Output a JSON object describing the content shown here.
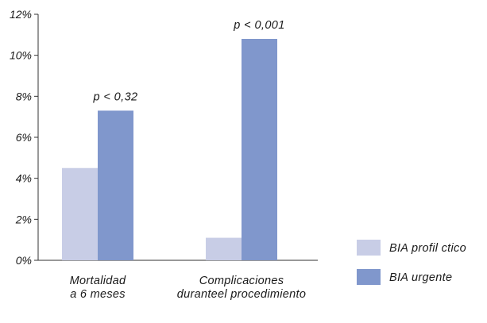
{
  "chart_data": {
    "type": "bar",
    "categories": [
      [
        "Mortalidad",
        "a 6 meses"
      ],
      [
        "Complicaciones",
        "duranteel procedimiento"
      ]
    ],
    "series": [
      {
        "name": "BIA profil  ctico",
        "color": "#c8cde6",
        "values": [
          4.5,
          1.1
        ]
      },
      {
        "name": "BIA urgente",
        "color": "#8097cc",
        "values": [
          7.3,
          10.8
        ]
      }
    ],
    "annotations": [
      "p < 0,32",
      "p < 0,001"
    ],
    "y_ticks": [
      "0%",
      "2%",
      "4%",
      "6%",
      "8%",
      "10%",
      "12%"
    ],
    "ylim": [
      0,
      12
    ],
    "ytick_step": 2,
    "legend_position": "bottom-right",
    "grid": false,
    "title": "",
    "xlabel": "",
    "ylabel": ""
  }
}
